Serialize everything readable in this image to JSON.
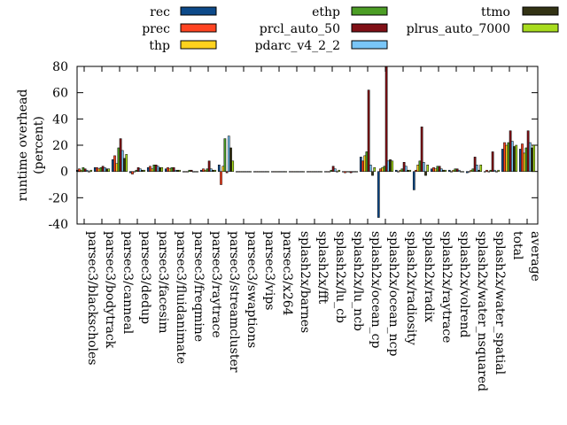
{
  "chart_data": {
    "type": "bar",
    "ylabel": "runtime overhead\n(percent)",
    "ylim": [
      -40,
      80
    ],
    "yticks": [
      -40,
      -20,
      0,
      20,
      40,
      60,
      80
    ],
    "legend_position": "top",
    "categories": [
      "parsec3/blackscholes",
      "parsec3/bodytrack",
      "parsec3/canneal",
      "parsec3/dedup",
      "parsec3/facesim",
      "parsec3/fluidanimate",
      "parsec3/freqmine",
      "parsec3/raytrace",
      "parsec3/streamcluster",
      "parsec3/swaptions",
      "parsec3/vips",
      "parsec3/x264",
      "splash2x/barnes",
      "splash2x/fft",
      "splash2x/lu_cb",
      "splash2x/lu_ncb",
      "splash2x/ocean_cp",
      "splash2x/ocean_ncp",
      "splash2x/radiosity",
      "splash2x/radix",
      "splash2x/raytrace",
      "splash2x/volrend",
      "splash2x/water_nsquared",
      "splash2x/water_spatial",
      "total",
      "average"
    ],
    "series": [
      {
        "name": "rec",
        "color": "#0d4a8a",
        "values": [
          1,
          3,
          9,
          -1,
          3,
          2,
          0,
          1,
          5,
          0,
          0,
          0,
          0,
          0,
          0,
          0,
          11,
          -35,
          1,
          -14,
          2,
          1,
          -1,
          0,
          17,
          17
        ]
      },
      {
        "name": "prec",
        "color": "#ff4422",
        "values": [
          2,
          3,
          12,
          -2,
          4,
          3,
          0,
          2,
          -10,
          0,
          0,
          0,
          0,
          0,
          0,
          -1,
          8,
          2,
          0,
          1,
          3,
          0,
          0,
          1,
          22,
          21
        ]
      },
      {
        "name": "thp",
        "color": "#ffd21e",
        "values": [
          1,
          2,
          6,
          0,
          2,
          2,
          0,
          1,
          4,
          0,
          0,
          0,
          0,
          0,
          0,
          0,
          12,
          3,
          1,
          5,
          2,
          1,
          1,
          0,
          20,
          14
        ]
      },
      {
        "name": "ethp",
        "color": "#4c9e25",
        "values": [
          3,
          3,
          18,
          1,
          5,
          3,
          1,
          2,
          25,
          0,
          0,
          0,
          0,
          0,
          1,
          0,
          15,
          4,
          2,
          8,
          4,
          2,
          2,
          1,
          22,
          18
        ]
      },
      {
        "name": "prcl_auto_50",
        "color": "#801016",
        "values": [
          2,
          4,
          25,
          3,
          5,
          3,
          1,
          8,
          -1,
          0,
          0,
          0,
          0,
          0,
          4,
          -1,
          62,
          80,
          7,
          34,
          4,
          2,
          11,
          15,
          31,
          31
        ]
      },
      {
        "name": "pdarc_v4_2_2",
        "color": "#79c6f8",
        "values": [
          1,
          3,
          16,
          2,
          4,
          1,
          0,
          2,
          27,
          0,
          0,
          0,
          0,
          0,
          2,
          0,
          5,
          8,
          4,
          7,
          2,
          1,
          5,
          1,
          23,
          22
        ]
      },
      {
        "name": "ttmo",
        "color": "#333314",
        "values": [
          0,
          2,
          10,
          1,
          3,
          1,
          0,
          1,
          18,
          0,
          0,
          0,
          0,
          0,
          0,
          0,
          -3,
          9,
          1,
          -3,
          1,
          0,
          1,
          0,
          19,
          18
        ]
      },
      {
        "name": "plrus_auto_7000",
        "color": "#a8dc1e",
        "values": [
          1,
          2,
          13,
          1,
          3,
          1,
          0,
          1,
          8,
          0,
          0,
          0,
          0,
          0,
          1,
          0,
          3,
          8,
          1,
          5,
          1,
          0,
          5,
          1,
          20,
          20
        ]
      }
    ]
  }
}
